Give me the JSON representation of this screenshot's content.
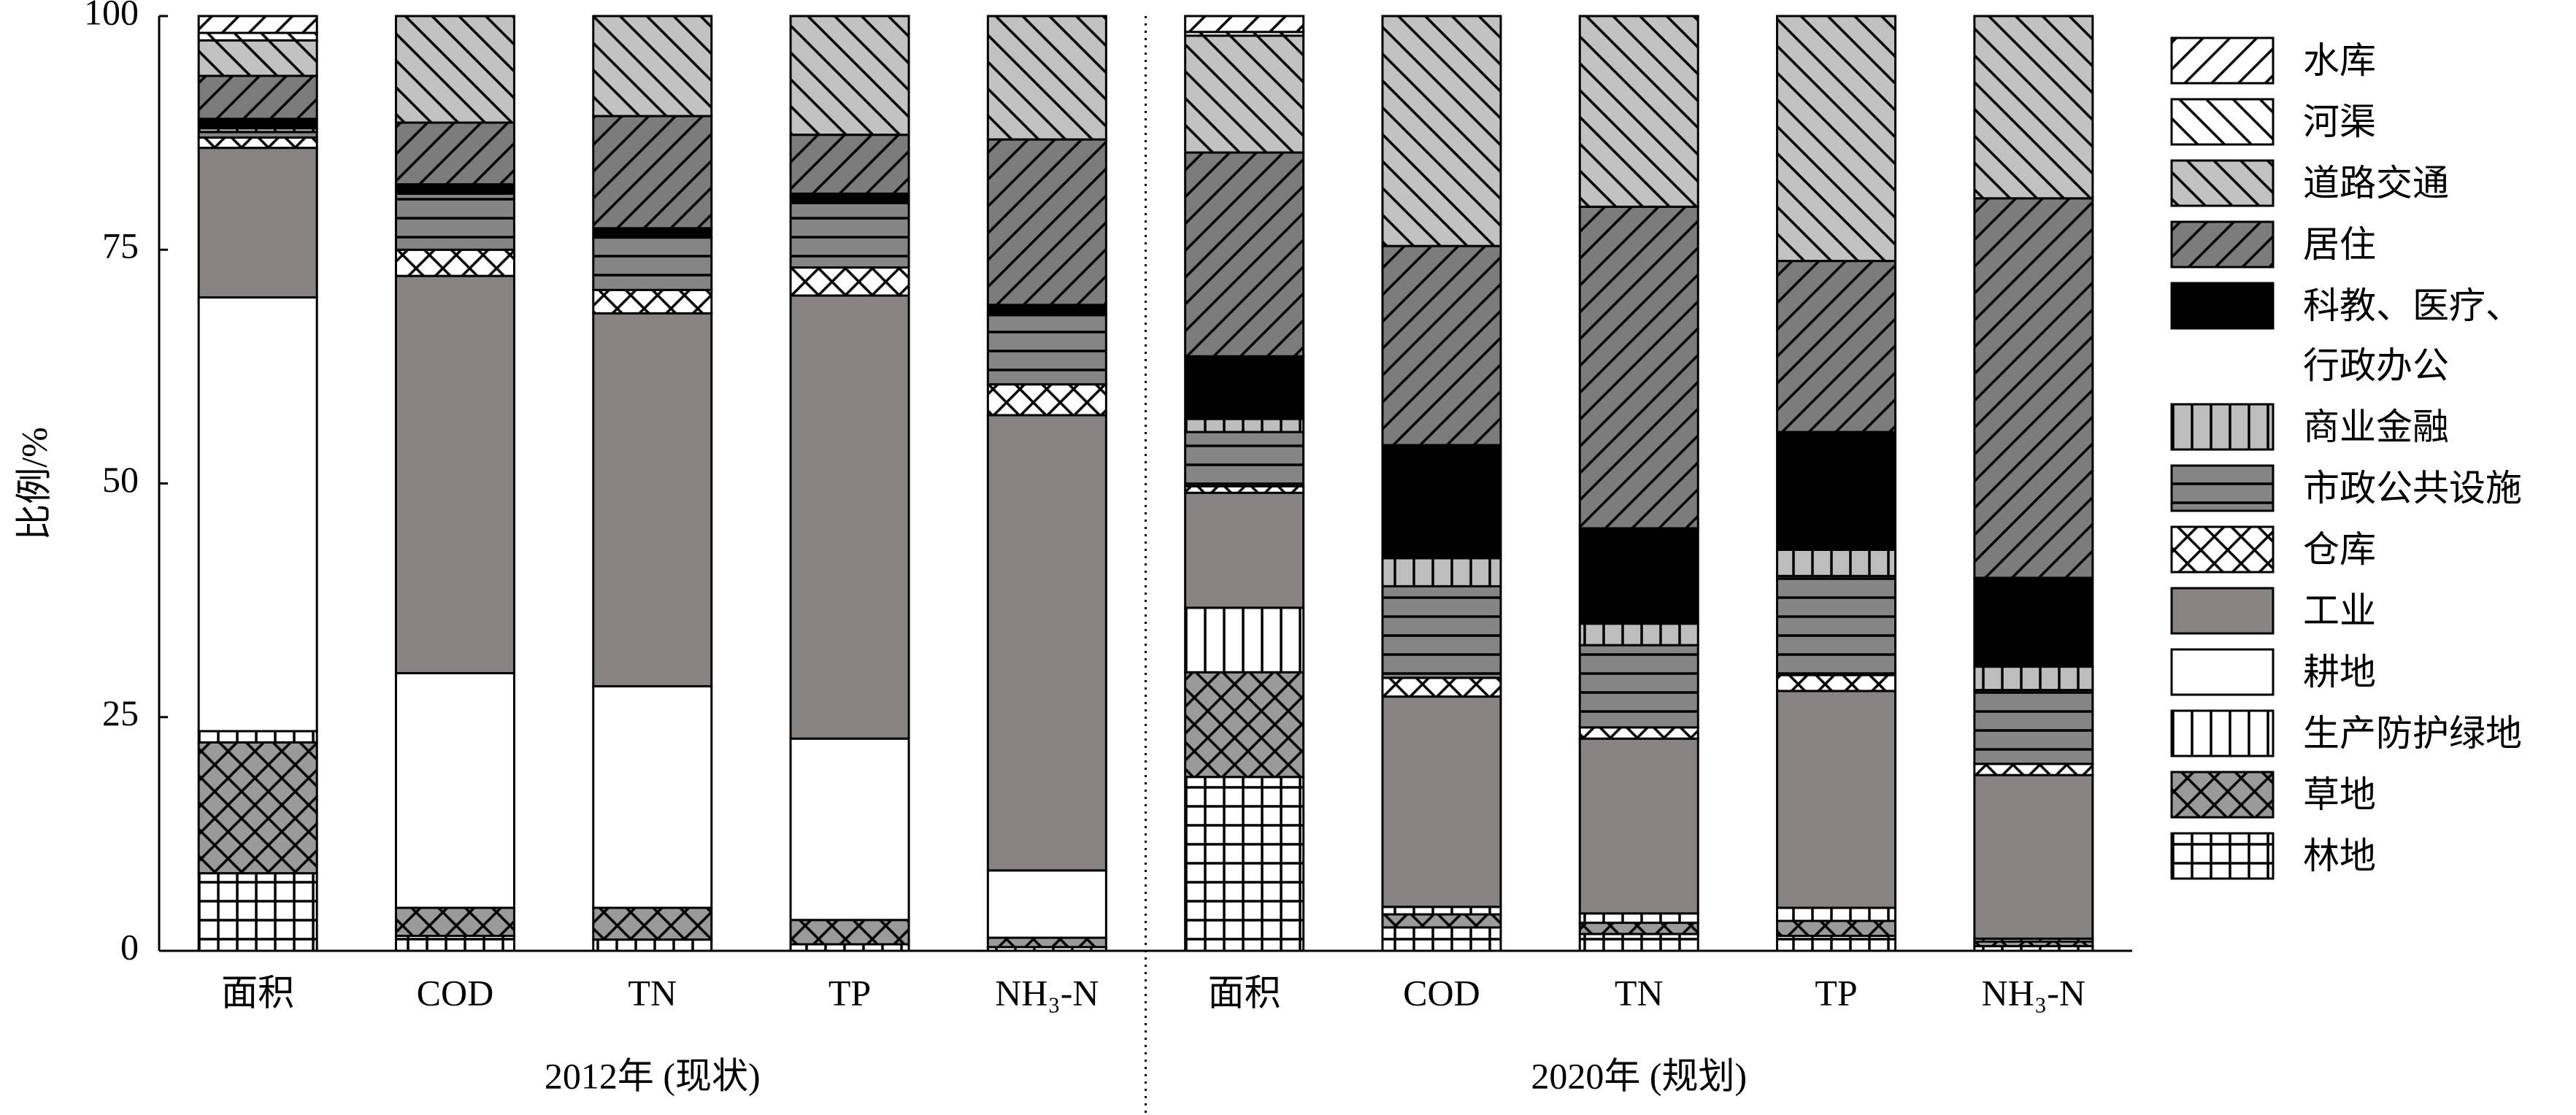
{
  "chart_data": {
    "type": "bar",
    "stacked": true,
    "ylabel": "比例/%",
    "ylim": [
      0,
      100
    ],
    "yticks": [
      0,
      25,
      50,
      75,
      100
    ],
    "legend": "right",
    "groups": [
      {
        "name": "2012年 (现状)",
        "categories": [
          "面积",
          "COD",
          "TN",
          "TP",
          "NH₃-N"
        ]
      },
      {
        "name": "2020年 (规划)",
        "categories": [
          "面积",
          "COD",
          "TN",
          "TP",
          "NH₃-N"
        ]
      }
    ],
    "series": [
      {
        "name": "林地",
        "color": "#ffffff",
        "pattern": "grid",
        "values": [
          8.3,
          1.6,
          1.2,
          0.7,
          0.4,
          18.6,
          2.5,
          1.8,
          1.6,
          0.5
        ]
      },
      {
        "name": "草地",
        "color": "#9a9a9a",
        "pattern": "diag-cross",
        "values": [
          14.0,
          3.0,
          3.4,
          2.6,
          1.0,
          11.2,
          1.4,
          1.2,
          1.6,
          0.5
        ]
      },
      {
        "name": "生产防护绿地",
        "color": "#ffffff",
        "pattern": "vertical",
        "values": [
          1.2,
          0,
          0,
          0,
          0,
          6.9,
          0.8,
          1.0,
          1.4,
          0.3
        ]
      },
      {
        "name": "耕地",
        "color": "#ffffff",
        "pattern": "none",
        "values": [
          46.4,
          25.1,
          23.7,
          19.4,
          7.2,
          0,
          0,
          0,
          0,
          0
        ]
      },
      {
        "name": "工业",
        "color": "#878383",
        "pattern": "none",
        "values": [
          16.0,
          42.5,
          39.9,
          47.4,
          48.7,
          12.3,
          22.5,
          18.7,
          23.2,
          17.5
        ]
      },
      {
        "name": "仓库",
        "color": "#ffffff",
        "pattern": "diag-cross",
        "values": [
          1.1,
          2.8,
          2.5,
          3.0,
          3.3,
          0.7,
          2.0,
          1.2,
          1.7,
          1.2
        ]
      },
      {
        "name": "市政公共设施",
        "color": "#858585",
        "pattern": "horizontal",
        "values": [
          0.6,
          6.0,
          5.6,
          6.9,
          7.4,
          5.8,
          9.8,
          8.8,
          10.6,
          7.9
        ]
      },
      {
        "name": "商业金融",
        "color": "#bdbdbd",
        "pattern": "vertical",
        "values": [
          0.4,
          0,
          0,
          0,
          0,
          1.4,
          3.0,
          2.3,
          2.8,
          2.5
        ]
      },
      {
        "name": "科教、医疗、行政办公",
        "color": "#000000",
        "pattern": "none",
        "values": [
          1.0,
          1.0,
          1.0,
          1.0,
          1.1,
          6.7,
          12.1,
          10.2,
          12.6,
          9.5
        ]
      },
      {
        "name": "居住",
        "color": "#7c7c7c",
        "pattern": "diag-up",
        "values": [
          4.6,
          6.6,
          12.0,
          6.3,
          17.7,
          21.8,
          21.3,
          34.4,
          18.3,
          40.6
        ]
      },
      {
        "name": "道路交通",
        "color": "#c2c2c2",
        "pattern": "diag-down",
        "values": [
          3.8,
          11.4,
          10.7,
          12.7,
          13.2,
          12.5,
          24.6,
          20.4,
          26.2,
          19.5
        ]
      },
      {
        "name": "河渠",
        "color": "#ffffff",
        "pattern": "diag-down",
        "values": [
          0.8,
          0,
          0,
          0,
          0,
          0.4,
          0,
          0,
          0,
          0
        ]
      },
      {
        "name": "水库",
        "color": "#ffffff",
        "pattern": "diag-up",
        "values": [
          1.8,
          0,
          0,
          0,
          0,
          1.7,
          0,
          0,
          0,
          0
        ]
      }
    ]
  }
}
